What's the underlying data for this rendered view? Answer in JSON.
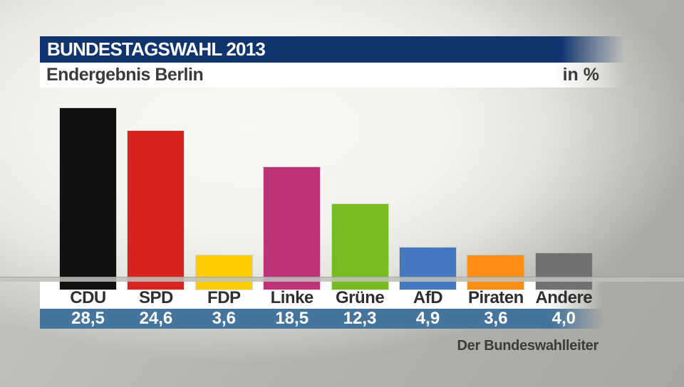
{
  "header": {
    "title": "BUNDESTAGSWAHL 2013",
    "subtitle": "Endergebnis Berlin",
    "unit_label": "in %"
  },
  "footer": {
    "source": "Der Bundeswahlleiter"
  },
  "colors": {
    "header_bar": "#0F346E",
    "value_band": "#45759D",
    "floor_band": "#C1C1BC",
    "label_text": "#2F2F2F",
    "value_text": "#FFFFFF"
  },
  "chart_data": {
    "type": "bar",
    "title": "Endergebnis Berlin",
    "unit": "in %",
    "categories": [
      "CDU",
      "SPD",
      "FDP",
      "Linke",
      "Grüne",
      "AfD",
      "Piraten",
      "Andere"
    ],
    "values": [
      28.5,
      24.6,
      3.6,
      18.5,
      12.3,
      4.9,
      3.6,
      4.0
    ],
    "value_labels": [
      "28,5",
      "24,6",
      "3,6",
      "18,5",
      "12,3",
      "4,9",
      "3,6",
      "4,0"
    ],
    "bar_colors": [
      "#111111",
      "#D8231F",
      "#FFCC00",
      "#BE3277",
      "#77BB20",
      "#4478C0",
      "#FE8E15",
      "#717171"
    ],
    "ylim": [
      0,
      30
    ],
    "grid": false,
    "legend": false,
    "source": "Der Bundeswahlleiter"
  }
}
